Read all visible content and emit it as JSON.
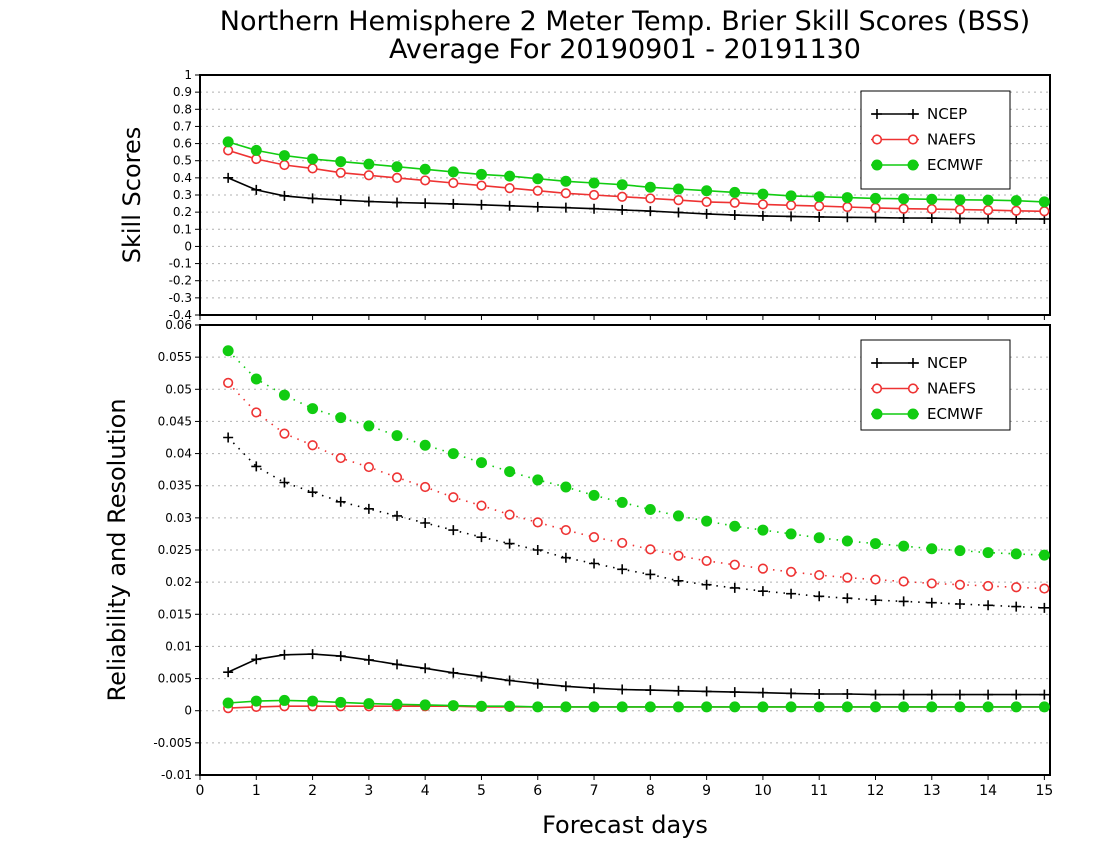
{
  "title_line1": "Northern Hemisphere 2 Meter Temp. Brier Skill Scores (BSS)",
  "title_line2": "Average For 20190901 - 20191130",
  "xlabel": "Forecast days",
  "colors": {
    "NCEP": "#000000",
    "NAEFS": "#ee3333",
    "ECMWF": "#11cc11"
  },
  "chart_data": [
    {
      "type": "line",
      "ylabel": "Skill Scores",
      "xlim": [
        0,
        15.1
      ],
      "ylim": [
        -0.4,
        1
      ],
      "grid": true,
      "legend": "top-right",
      "x_ticks": [
        0,
        1,
        2,
        3,
        4,
        5,
        6,
        7,
        8,
        9,
        10,
        11,
        12,
        13,
        14,
        15
      ],
      "y_ticks": [
        "-0.4",
        "-0.3",
        "-0.2",
        "-0.1",
        "0",
        "0.1",
        "0.2",
        "0.3",
        "0.4",
        "0.5",
        "0.6",
        "0.7",
        "0.8",
        "0.9",
        "1"
      ],
      "x": [
        0.5,
        1,
        1.5,
        2,
        2.5,
        3,
        3.5,
        4,
        4.5,
        5,
        5.5,
        6,
        6.5,
        7,
        7.5,
        8,
        8.5,
        9,
        9.5,
        10,
        10.5,
        11,
        11.5,
        12,
        12.5,
        13,
        13.5,
        14,
        14.5,
        15
      ],
      "series": [
        {
          "name": "NCEP",
          "marker": "plus",
          "line": "solid",
          "values": [
            0.4,
            0.33,
            0.295,
            0.28,
            0.27,
            0.262,
            0.256,
            0.252,
            0.248,
            0.243,
            0.237,
            0.231,
            0.226,
            0.22,
            0.213,
            0.206,
            0.198,
            0.19,
            0.183,
            0.178,
            0.175,
            0.172,
            0.17,
            0.168,
            0.166,
            0.165,
            0.163,
            0.162,
            0.161,
            0.16
          ]
        },
        {
          "name": "NAEFS",
          "marker": "open-circle",
          "line": "solid",
          "values": [
            0.56,
            0.51,
            0.475,
            0.455,
            0.43,
            0.415,
            0.4,
            0.385,
            0.37,
            0.355,
            0.34,
            0.325,
            0.31,
            0.3,
            0.29,
            0.28,
            0.27,
            0.26,
            0.255,
            0.245,
            0.24,
            0.235,
            0.23,
            0.225,
            0.22,
            0.218,
            0.215,
            0.212,
            0.208,
            0.205
          ]
        },
        {
          "name": "ECMWF",
          "marker": "filled-circle",
          "line": "solid",
          "values": [
            0.61,
            0.56,
            0.53,
            0.51,
            0.495,
            0.48,
            0.465,
            0.45,
            0.435,
            0.42,
            0.41,
            0.395,
            0.38,
            0.37,
            0.36,
            0.345,
            0.335,
            0.325,
            0.315,
            0.305,
            0.295,
            0.29,
            0.285,
            0.28,
            0.278,
            0.275,
            0.272,
            0.27,
            0.267,
            0.26
          ]
        }
      ]
    },
    {
      "type": "line",
      "ylabel": "Reliability and Resolution",
      "xlim": [
        0,
        15.1
      ],
      "ylim": [
        -0.01,
        0.06
      ],
      "grid": true,
      "legend": "top-right",
      "x_ticks": [
        0,
        1,
        2,
        3,
        4,
        5,
        6,
        7,
        8,
        9,
        10,
        11,
        12,
        13,
        14,
        15
      ],
      "y_ticks": [
        "-0.01",
        "-0.005",
        "0",
        "0.005",
        "0.01",
        "0.015",
        "0.02",
        "0.025",
        "0.03",
        "0.035",
        "0.04",
        "0.045",
        "0.05",
        "0.055",
        "0.06"
      ],
      "x": [
        0.5,
        1,
        1.5,
        2,
        2.5,
        3,
        3.5,
        4,
        4.5,
        5,
        5.5,
        6,
        6.5,
        7,
        7.5,
        8,
        8.5,
        9,
        9.5,
        10,
        10.5,
        11,
        11.5,
        12,
        12.5,
        13,
        13.5,
        14,
        14.5,
        15
      ],
      "series": [
        {
          "name": "NCEP",
          "marker": "plus",
          "line": "dotted",
          "values": [
            0.0425,
            0.038,
            0.0355,
            0.034,
            0.0325,
            0.0314,
            0.0303,
            0.0292,
            0.0281,
            0.027,
            0.026,
            0.025,
            0.0238,
            0.0229,
            0.022,
            0.0212,
            0.0202,
            0.0196,
            0.0191,
            0.0186,
            0.0182,
            0.0178,
            0.0175,
            0.0172,
            0.017,
            0.0168,
            0.0166,
            0.0164,
            0.0162,
            0.016
          ]
        },
        {
          "name": "NAEFS",
          "marker": "open-circle",
          "line": "dotted",
          "values": [
            0.051,
            0.0464,
            0.0431,
            0.0413,
            0.0393,
            0.0379,
            0.0363,
            0.0348,
            0.0332,
            0.0319,
            0.0305,
            0.0293,
            0.0281,
            0.027,
            0.0261,
            0.0251,
            0.0241,
            0.0233,
            0.0227,
            0.0221,
            0.0216,
            0.0211,
            0.0207,
            0.0204,
            0.0201,
            0.0198,
            0.0196,
            0.0194,
            0.0192,
            0.019
          ]
        },
        {
          "name": "ECMWF",
          "marker": "filled-circle",
          "line": "dotted",
          "values": [
            0.056,
            0.0516,
            0.0491,
            0.047,
            0.0456,
            0.0443,
            0.0428,
            0.0413,
            0.04,
            0.0386,
            0.0372,
            0.0359,
            0.0348,
            0.0335,
            0.0324,
            0.0313,
            0.0303,
            0.0295,
            0.0287,
            0.0281,
            0.0275,
            0.0269,
            0.0264,
            0.026,
            0.0256,
            0.0252,
            0.0249,
            0.0246,
            0.0244,
            0.0242
          ]
        },
        {
          "name": "NCEP",
          "marker": "plus",
          "line": "solid",
          "legend": false,
          "values": [
            0.006,
            0.008,
            0.0087,
            0.0088,
            0.0085,
            0.0079,
            0.0072,
            0.0066,
            0.0059,
            0.0053,
            0.0047,
            0.0042,
            0.0038,
            0.0035,
            0.0033,
            0.0032,
            0.0031,
            0.003,
            0.0029,
            0.0028,
            0.0027,
            0.0026,
            0.0026,
            0.0025,
            0.0025,
            0.0025,
            0.0025,
            0.0025,
            0.0025,
            0.0025
          ]
        },
        {
          "name": "NAEFS",
          "marker": "open-circle",
          "line": "solid",
          "legend": false,
          "values": [
            0.0004,
            0.0006,
            0.0007,
            0.0007,
            0.0007,
            0.0007,
            0.0007,
            0.0007,
            0.0007,
            0.0006,
            0.0006,
            0.0006,
            0.0006,
            0.0006,
            0.0006,
            0.0006,
            0.0006,
            0.0006,
            0.0006,
            0.0006,
            0.0006,
            0.0006,
            0.0006,
            0.0006,
            0.0006,
            0.0006,
            0.0006,
            0.0006,
            0.0006,
            0.0006
          ]
        },
        {
          "name": "ECMWF",
          "marker": "filled-circle",
          "line": "solid",
          "legend": false,
          "values": [
            0.0012,
            0.0015,
            0.0016,
            0.0015,
            0.0013,
            0.0011,
            0.001,
            0.0009,
            0.0008,
            0.0007,
            0.0007,
            0.0006,
            0.0006,
            0.0006,
            0.0006,
            0.0006,
            0.0006,
            0.0006,
            0.0006,
            0.0006,
            0.0006,
            0.0006,
            0.0006,
            0.0006,
            0.0006,
            0.0006,
            0.0006,
            0.0006,
            0.0006,
            0.0006
          ]
        }
      ]
    }
  ]
}
